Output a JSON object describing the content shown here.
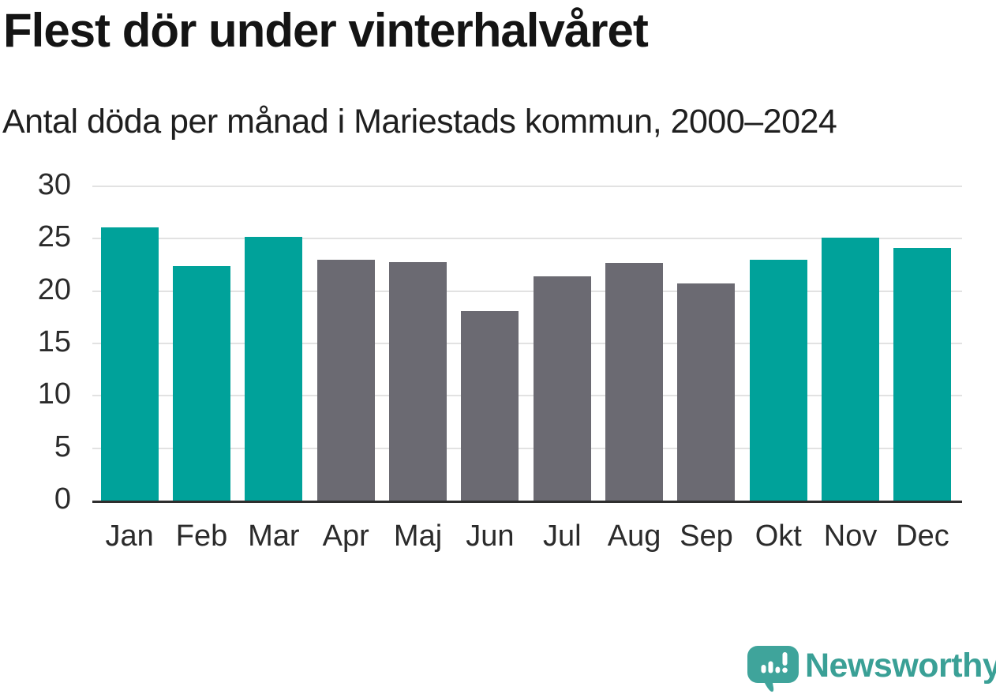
{
  "header": {
    "title": "Flest dör under vinterhalvåret",
    "subtitle": "Antal döda per månad i Mariestads kommun, 2000–2024"
  },
  "chart_data": {
    "type": "bar",
    "title": "Flest dör under vinterhalvåret",
    "subtitle": "Antal döda per månad i Mariestads kommun, 2000–2024",
    "categories": [
      "Jan",
      "Feb",
      "Mar",
      "Apr",
      "Maj",
      "Jun",
      "Jul",
      "Aug",
      "Sep",
      "Okt",
      "Nov",
      "Dec"
    ],
    "values": [
      26.1,
      22.4,
      25.2,
      23.0,
      22.8,
      18.1,
      21.4,
      22.7,
      20.7,
      23.0,
      25.1,
      24.1
    ],
    "xlabel": "",
    "ylabel": "",
    "ylim": [
      0,
      30
    ],
    "yticks": [
      0,
      5,
      10,
      15,
      20,
      25,
      30
    ],
    "grid": true,
    "legend": false,
    "highlighted_months": [
      "Jan",
      "Feb",
      "Mar",
      "Okt",
      "Nov",
      "Dec"
    ],
    "bar_colors": [
      "#00a29a",
      "#00a29a",
      "#00a29a",
      "#6b6a72",
      "#6b6a72",
      "#6b6a72",
      "#6b6a72",
      "#6b6a72",
      "#6b6a72",
      "#00a29a",
      "#00a29a",
      "#00a29a"
    ],
    "colors": {
      "winter_highlight": "#00a29a",
      "summer": "#6b6a72",
      "gridline": "#e2e2e2",
      "axis": "#2e2e2e"
    }
  },
  "footer": {
    "brand_name": "Newsworthy",
    "brand_color": "#3aa096",
    "logo_icon": "speech-bubble-bar-chart-exclamation"
  }
}
